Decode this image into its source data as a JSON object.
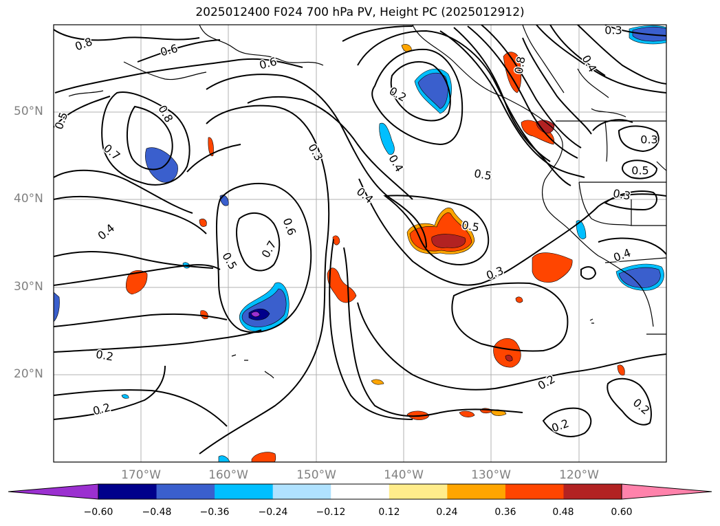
{
  "title": "2025012400 F024 700 hPa PV, Height PC (2025012912)",
  "lat_labels": [
    "50°N",
    "40°N",
    "30°N",
    "20°N"
  ],
  "lon_labels": [
    "170°W",
    "160°W",
    "150°W",
    "140°W",
    "130°W",
    "120°W"
  ],
  "contour_labels": [
    "0.8",
    "0.6",
    "0.6",
    "0.5",
    "0.8",
    "0.7",
    "0.4",
    "0.2",
    "0.2",
    "0.3",
    "0.4",
    "0.4",
    "0.5",
    "0.6",
    "0.7",
    "0.5",
    "0.5",
    "0.3",
    "0.3",
    "0.5",
    "0.3",
    "0.4",
    "0.2",
    "0.2",
    "0.2",
    "0.2",
    "0.3",
    "0.4",
    "0.8",
    "0.2"
  ],
  "colorbar": {
    "ticks": [
      "−0.60",
      "−0.48",
      "−0.36",
      "−0.24",
      "−0.12",
      "0.12",
      "0.24",
      "0.36",
      "0.48",
      "0.60"
    ],
    "colors": [
      "#9b30d0",
      "#00008b",
      "#3a5fcd",
      "#00bfff",
      "#b0e2ff",
      "#ffffff",
      "#ffec8b",
      "#ffa500",
      "#ff4500",
      "#b22222",
      "#ff82ab"
    ]
  }
}
